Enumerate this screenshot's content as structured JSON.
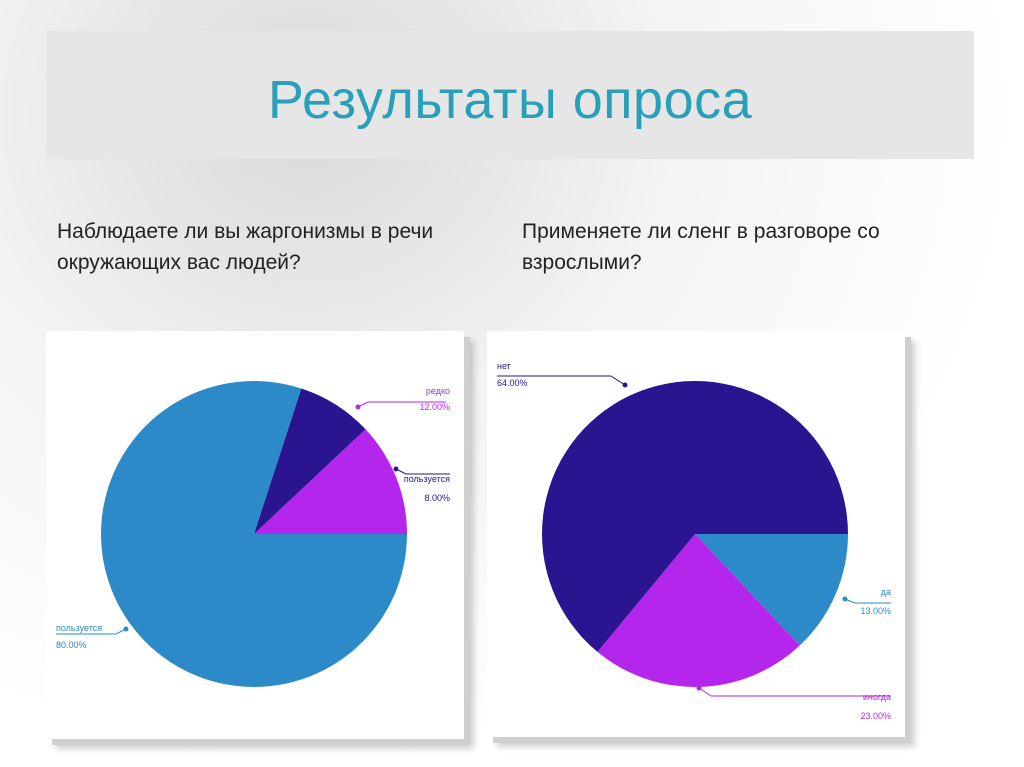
{
  "slide": {
    "title": "Результаты опроса"
  },
  "questions": [
    "Наблюдаете ли вы жаргонизмы в речи окружающих вас людей?",
    "Применяете ли сленг в разговоре со взрослыми?"
  ],
  "chart_data": [
    {
      "type": "pie",
      "title": "",
      "slices": [
        {
          "label": "пользуется",
          "value": 80.0,
          "display": "80.00%",
          "color": "#2d8ac8"
        },
        {
          "label": "редко",
          "value": 12.0,
          "display": "12.00%",
          "color": "#b526ec"
        },
        {
          "label": "пользуется",
          "value": 8.0,
          "display": "8.00%",
          "color": "#2a1490"
        }
      ]
    },
    {
      "type": "pie",
      "title": "",
      "slices": [
        {
          "label": "нет",
          "value": 64.0,
          "display": "64.00%",
          "color": "#2a1490"
        },
        {
          "label": "да",
          "value": 13.0,
          "display": "13.00%",
          "color": "#2d8ac8"
        },
        {
          "label": "иногда",
          "value": 23.0,
          "display": "23.00%",
          "color": "#b526ec"
        }
      ]
    }
  ]
}
